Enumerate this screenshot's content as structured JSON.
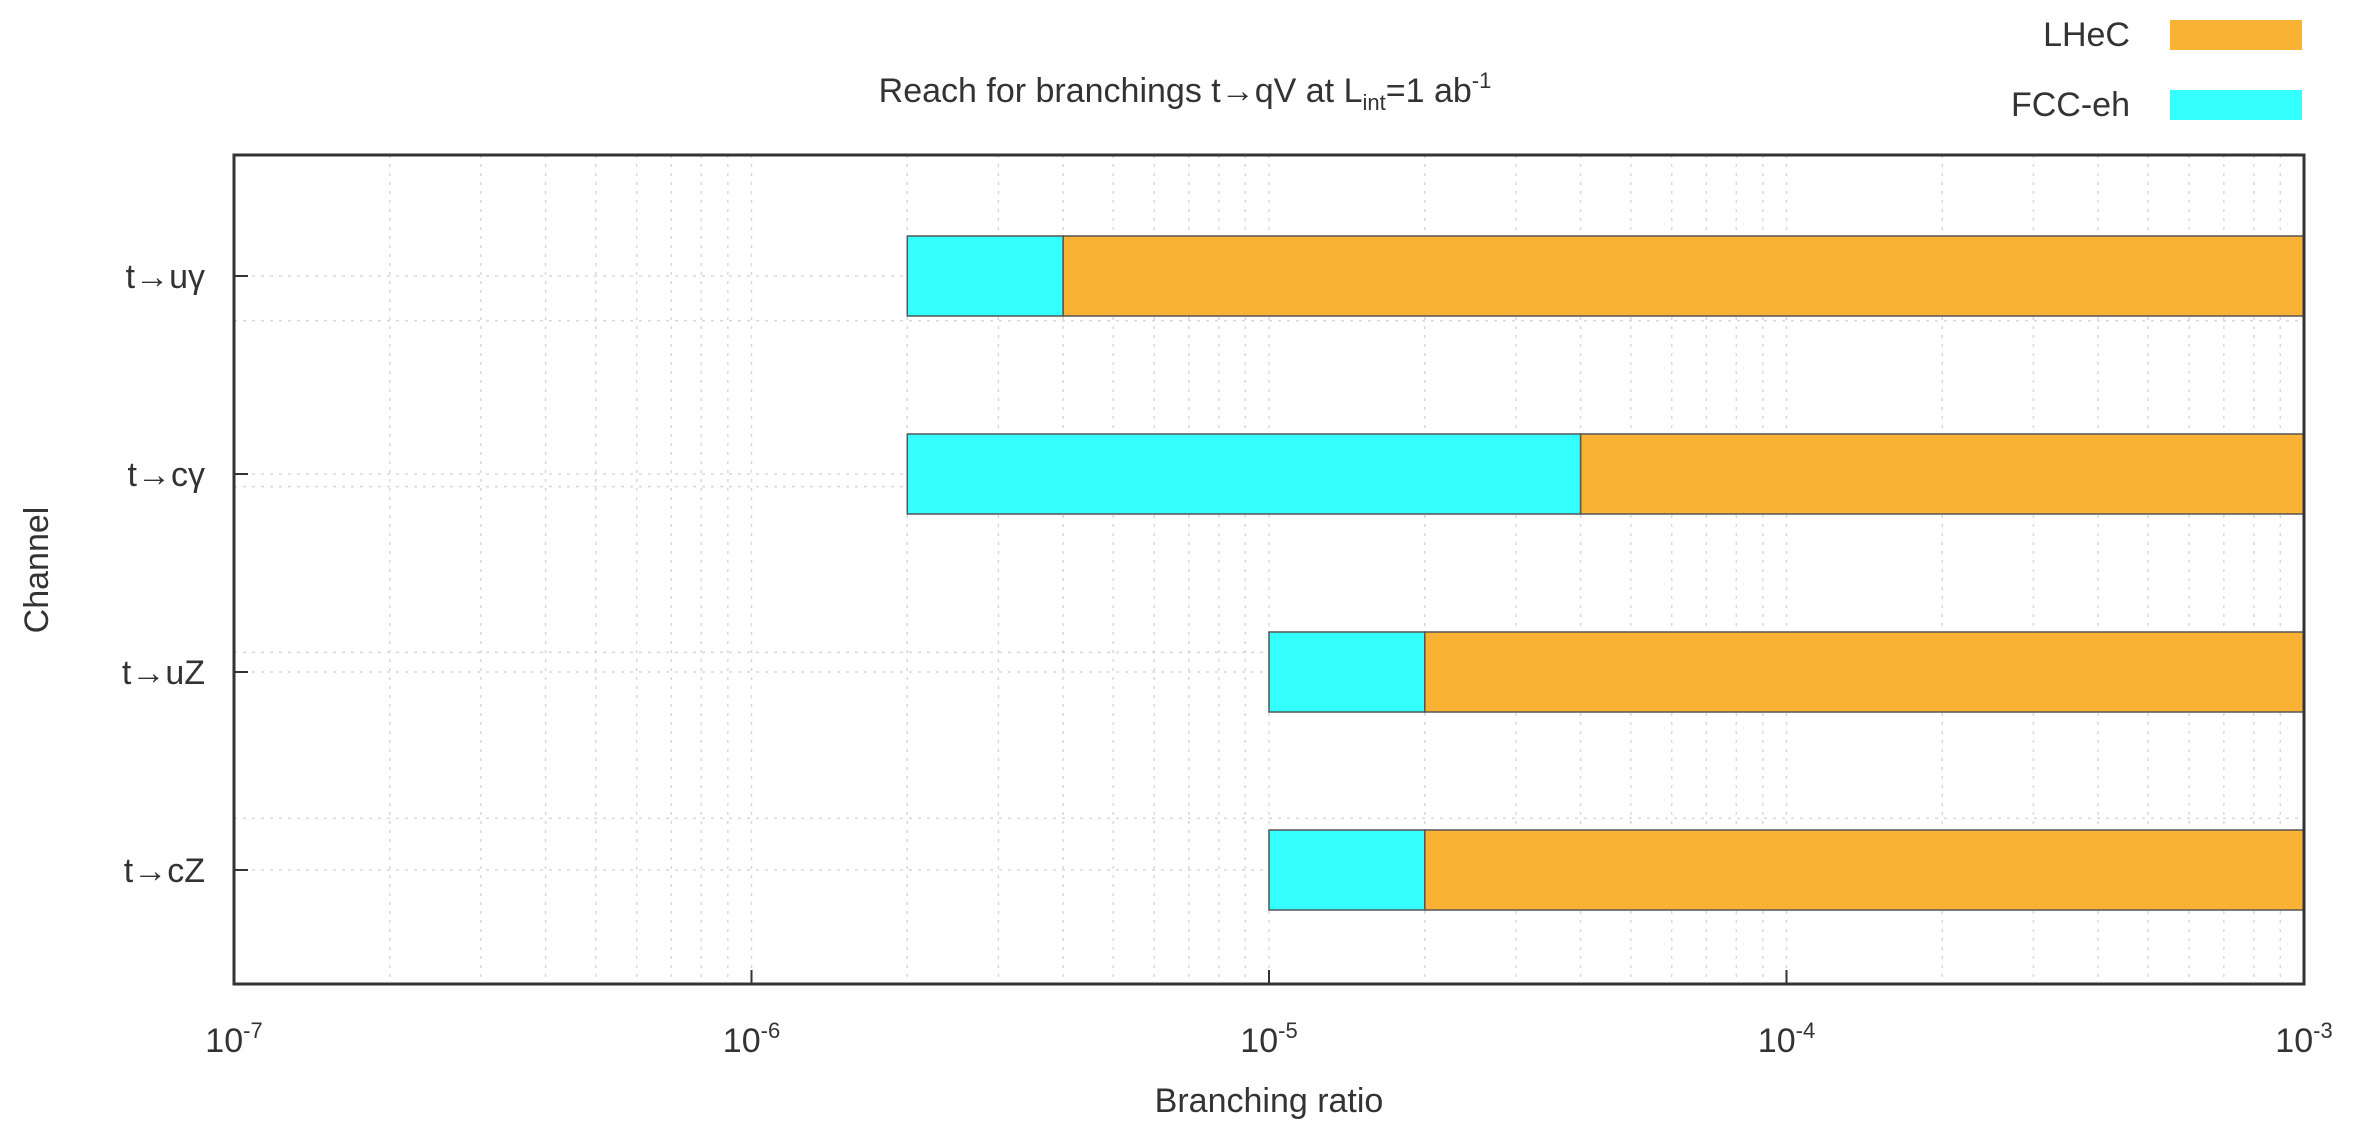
{
  "chart_data": {
    "type": "bar",
    "orientation": "horizontal",
    "stacked": true,
    "title": {
      "main": "Reach for branchings t",
      "arrow": "→",
      "mid": "qV at L",
      "sub": "int",
      "eq": "=1 ab",
      "sup": "-1"
    },
    "xlabel": "Branching ratio",
    "ylabel": "Channel",
    "xscale": "log",
    "xlim": [
      1e-07,
      0.001
    ],
    "x_ticks": [
      {
        "base": "10",
        "exp": "-7",
        "value": 1e-07
      },
      {
        "base": "10",
        "exp": "-6",
        "value": 1e-06
      },
      {
        "base": "10",
        "exp": "-5",
        "value": 1e-05
      },
      {
        "base": "10",
        "exp": "-4",
        "value": 0.0001
      },
      {
        "base": "10",
        "exp": "-3",
        "value": 0.001
      }
    ],
    "categories": [
      {
        "pre": "t",
        "arrow": "→",
        "post": "uγ"
      },
      {
        "pre": "t",
        "arrow": "→",
        "post": "cγ"
      },
      {
        "pre": "t",
        "arrow": "→",
        "post": "uZ"
      },
      {
        "pre": "t",
        "arrow": "→",
        "post": "cZ"
      }
    ],
    "grid": true,
    "legend_position": "top-right",
    "series": [
      {
        "name": "LHeC",
        "color": "#f9b233",
        "ranges": [
          [
            4e-06,
            0.001
          ],
          [
            4e-05,
            0.001
          ],
          [
            2e-05,
            0.001
          ],
          [
            2e-05,
            0.001
          ]
        ]
      },
      {
        "name": "FCC-eh",
        "color": "#33ffff",
        "ranges": [
          [
            2e-06,
            4e-06
          ],
          [
            2e-06,
            4e-05
          ],
          [
            1e-05,
            2e-05
          ],
          [
            1e-05,
            2e-05
          ]
        ]
      }
    ]
  }
}
